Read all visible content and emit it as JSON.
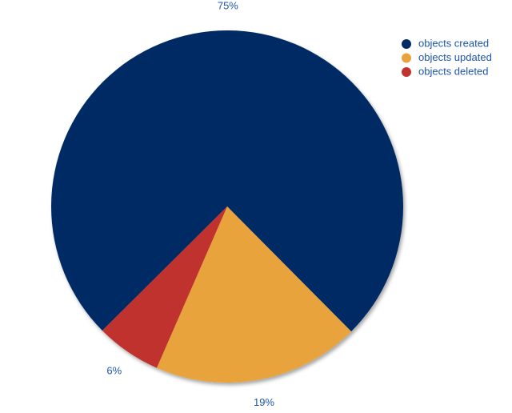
{
  "chart_data": {
    "type": "pie",
    "categories": [
      "objects created",
      "objects updated",
      "objects deleted"
    ],
    "values": [
      75,
      19,
      6
    ],
    "value_labels": [
      "75%",
      "19%",
      "6%"
    ],
    "colors": [
      "#002b64",
      "#e8a33d",
      "#c0332f"
    ],
    "legend": "top-right"
  }
}
